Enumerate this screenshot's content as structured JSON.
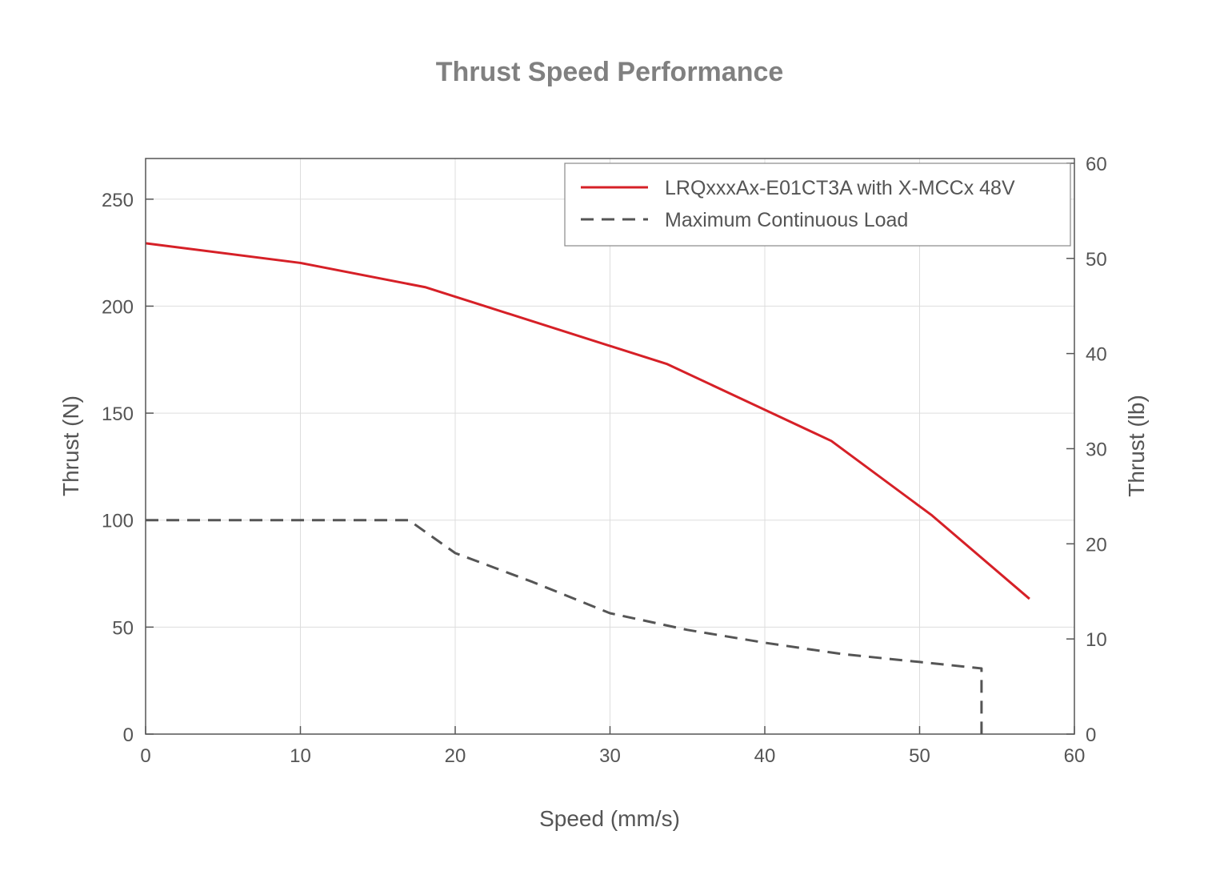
{
  "chart_data": {
    "type": "line",
    "title": "Thrust Speed Performance",
    "xlabel": "Speed (mm/s)",
    "ylabel": "Thrust (N)",
    "y2label": "Thrust (lb)",
    "xlim": [
      0,
      60
    ],
    "ylim": [
      0,
      269
    ],
    "y2lim": [
      0,
      60.5
    ],
    "xticks": [
      0,
      10,
      20,
      30,
      40,
      50,
      60
    ],
    "yticks": [
      0,
      50,
      100,
      150,
      200,
      250
    ],
    "y2ticks": [
      0,
      10,
      20,
      30,
      40,
      50,
      60
    ],
    "grid": true,
    "legend_position": "top-right",
    "series": [
      {
        "name": "LRQxxxAx-E01CT3A with X-MCCx 48V",
        "color": "#d62027",
        "style": "solid",
        "x": [
          0,
          10,
          18.1,
          33.7,
          44.3,
          50.8,
          57.1
        ],
        "y": [
          229.4,
          220.2,
          208.8,
          172.9,
          137.0,
          102.2,
          63.2
        ]
      },
      {
        "name": "Maximum Continuous Load",
        "color": "#555555",
        "style": "dashed",
        "x": [
          0,
          17.0,
          20,
          25,
          30,
          35,
          40,
          45,
          50,
          54,
          54
        ],
        "y": [
          100,
          100,
          84.6,
          71.1,
          56.5,
          48.7,
          42.7,
          37.4,
          33.7,
          30.7,
          0
        ]
      }
    ]
  }
}
